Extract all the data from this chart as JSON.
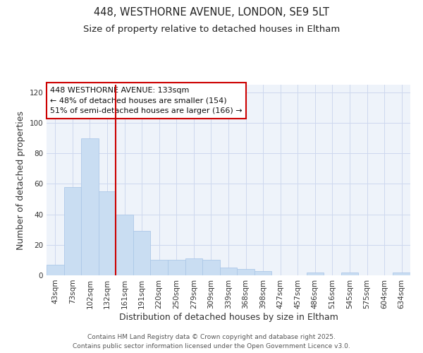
{
  "title_line1": "448, WESTHORNE AVENUE, LONDON, SE9 5LT",
  "title_line2": "Size of property relative to detached houses in Eltham",
  "xlabel": "Distribution of detached houses by size in Eltham",
  "ylabel": "Number of detached properties",
  "bar_labels": [
    "43sqm",
    "73sqm",
    "102sqm",
    "132sqm",
    "161sqm",
    "191sqm",
    "220sqm",
    "250sqm",
    "279sqm",
    "309sqm",
    "339sqm",
    "368sqm",
    "398sqm",
    "427sqm",
    "457sqm",
    "486sqm",
    "516sqm",
    "545sqm",
    "575sqm",
    "604sqm",
    "634sqm"
  ],
  "bar_values": [
    7,
    58,
    90,
    55,
    40,
    29,
    10,
    10,
    11,
    10,
    5,
    4,
    3,
    0,
    0,
    2,
    0,
    2,
    0,
    0,
    2
  ],
  "bar_color": "#c9ddf2",
  "bar_edge_color": "#adc8e8",
  "highlight_bar_index": 3,
  "highlight_line_color": "#cc0000",
  "ylim": [
    0,
    125
  ],
  "yticks": [
    0,
    20,
    40,
    60,
    80,
    100,
    120
  ],
  "annotation_title": "448 WESTHORNE AVENUE: 133sqm",
  "annotation_line1": "← 48% of detached houses are smaller (154)",
  "annotation_line2": "51% of semi-detached houses are larger (166) →",
  "annotation_box_color": "#ffffff",
  "annotation_box_edge_color": "#cc0000",
  "footer_line1": "Contains HM Land Registry data © Crown copyright and database right 2025.",
  "footer_line2": "Contains public sector information licensed under the Open Government Licence v3.0.",
  "background_color": "#ffffff",
  "plot_bg_color": "#eef3fa",
  "grid_color": "#cdd8ee",
  "title_fontsize": 10.5,
  "subtitle_fontsize": 9.5,
  "axis_label_fontsize": 9,
  "tick_label_fontsize": 7.5,
  "annotation_fontsize": 8,
  "footer_fontsize": 6.5
}
